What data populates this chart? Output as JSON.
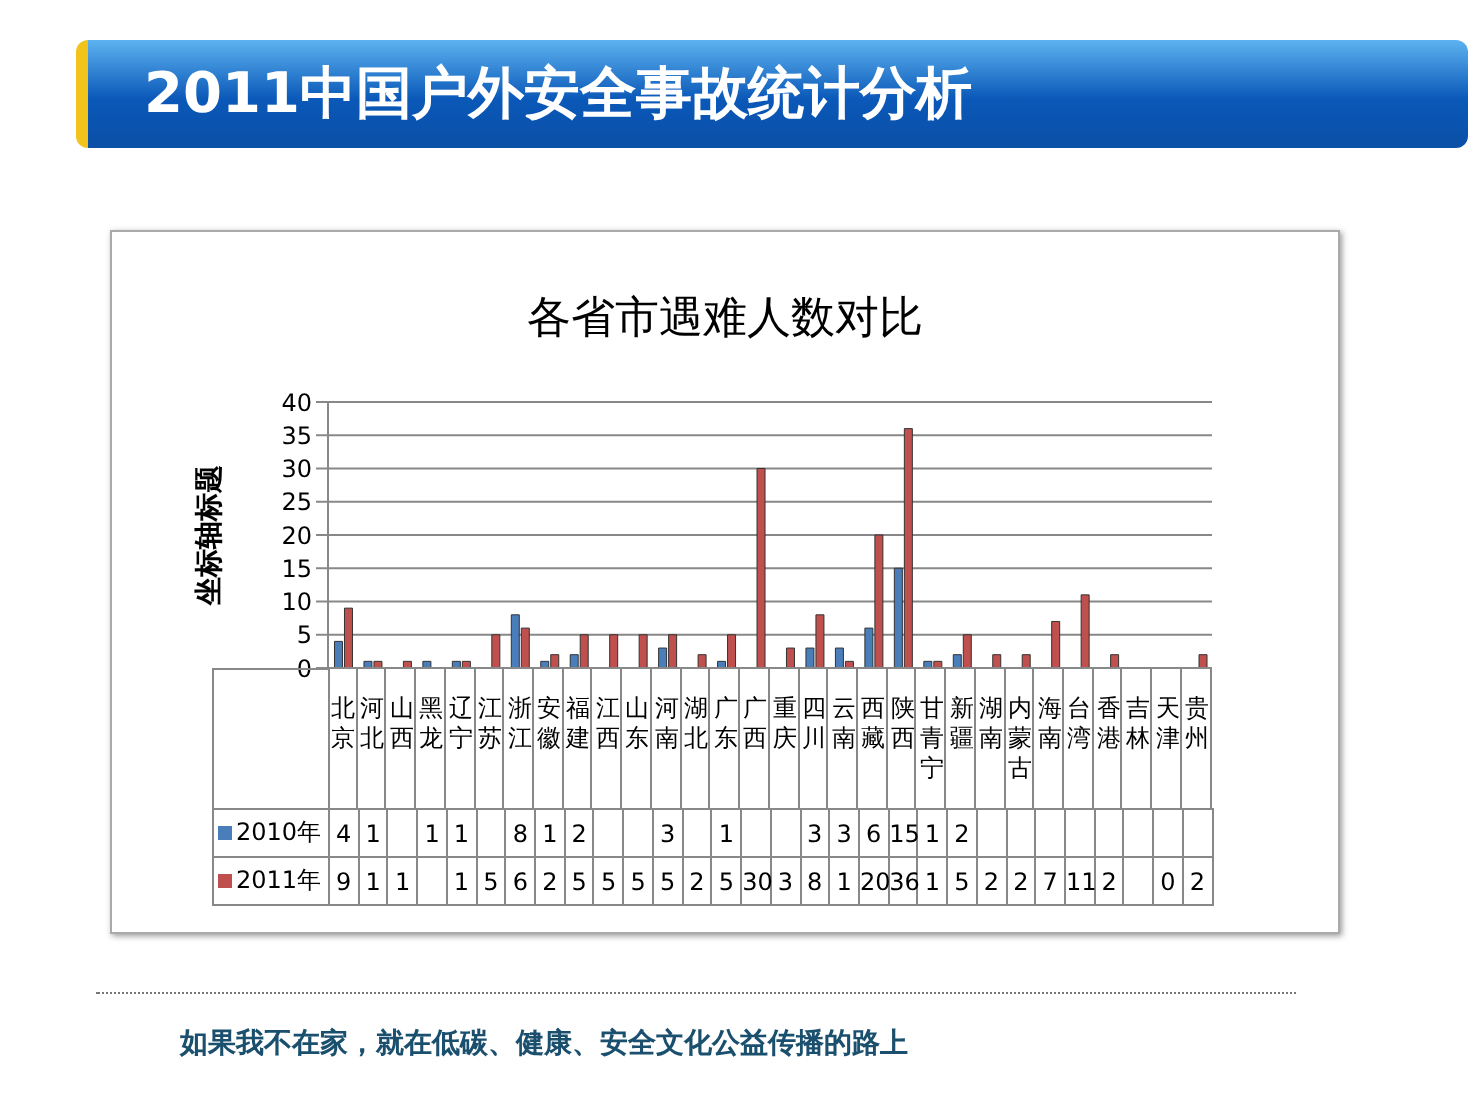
{
  "chart_data": {
    "type": "bar",
    "title": "2011中国户外安全事故统计分析",
    "subtitle": "各省市遇难人数对比",
    "ylabel": "坐标轴标题",
    "categories": [
      "北京",
      "河北",
      "山西",
      "黑龙",
      "辽宁",
      "江苏",
      "浙江",
      "安徽",
      "福建",
      "江西",
      "山东",
      "河南",
      "湖北",
      "广东",
      "广西",
      "重庆",
      "四川",
      "云南",
      "西藏",
      "陕西",
      "甘青宁",
      "新疆",
      "湖南",
      "内蒙古",
      "海南",
      "台湾",
      "香港",
      "吉林",
      "天津",
      "贵州"
    ],
    "series": [
      {
        "name": "2010年",
        "color": "#4a7ebb",
        "values": [
          4,
          1,
          null,
          1,
          1,
          null,
          8,
          1,
          2,
          null,
          null,
          3,
          null,
          1,
          null,
          null,
          3,
          3,
          6,
          15,
          1,
          2,
          null,
          null,
          null,
          null,
          null,
          null,
          null,
          null
        ]
      },
      {
        "name": "2011年",
        "color": "#c0504d",
        "values": [
          9,
          1,
          1,
          null,
          1,
          5,
          6,
          2,
          5,
          5,
          5,
          5,
          2,
          5,
          30,
          3,
          8,
          1,
          20,
          36,
          1,
          5,
          2,
          2,
          7,
          11,
          2,
          null,
          0,
          2
        ]
      }
    ],
    "ylim": [
      0,
      40
    ],
    "yticks": [
      0,
      5,
      10,
      15,
      20,
      25,
      30,
      35,
      40
    ],
    "grid": "y",
    "legend": "bottom",
    "data_labels": true,
    "annotations": [
      "如果我不在家，就在低碳、健康、安全文化公益传播的路上"
    ]
  }
}
